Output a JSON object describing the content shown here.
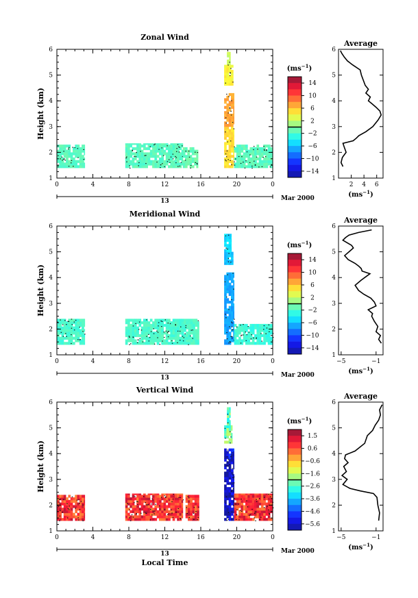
{
  "chart_data": [
    {
      "type": "heatmap",
      "title": "Zonal Wind",
      "ylabel": "Height (km)",
      "xlabel": "",
      "xlim": [
        0,
        24
      ],
      "ylim": [
        1,
        6
      ],
      "x_ticks": [
        "0",
        "4",
        "8",
        "12",
        "16",
        "20",
        "0"
      ],
      "y_ticks": [
        "1",
        "2",
        "3",
        "4",
        "5",
        "6"
      ],
      "date_day": "13",
      "date_label": "Mar 2000",
      "colorbar": {
        "unit": "(ms",
        "unit_sup": "−1",
        "unit_close": ")",
        "ticks": [
          "14",
          "10",
          "6",
          "2",
          "−2",
          "−6",
          "−10",
          "−14"
        ],
        "range": [
          -16,
          16
        ]
      },
      "data_blocks": [
        {
          "t0": 0.0,
          "t1": 3.1,
          "h0": 1.4,
          "h1": 2.3,
          "value": -1.5
        },
        {
          "t0": 7.6,
          "t1": 14.0,
          "h0": 1.4,
          "h1": 2.35,
          "value": -1.5
        },
        {
          "t0": 14.0,
          "t1": 15.7,
          "h0": 1.4,
          "h1": 2.2,
          "value": -1.0
        },
        {
          "t0": 18.6,
          "t1": 19.7,
          "h0": 1.4,
          "h1": 3.0,
          "value": 5.0
        },
        {
          "t0": 18.6,
          "t1": 19.7,
          "h0": 3.0,
          "h1": 4.3,
          "value": 7.0
        },
        {
          "t0": 18.6,
          "t1": 19.6,
          "h0": 4.6,
          "h1": 5.4,
          "value": 4.0
        },
        {
          "t0": 18.9,
          "t1": 19.3,
          "h0": 5.4,
          "h1": 5.9,
          "value": 2.5
        },
        {
          "t0": 19.7,
          "t1": 24.0,
          "h0": 1.4,
          "h1": 2.3,
          "value": -1.5
        }
      ],
      "average_profile": {
        "title": "Average",
        "xlabel": "(ms",
        "xlabel_sup": "−1",
        "xlabel_close": ")",
        "xlim": [
          0,
          7
        ],
        "x_ticks": [
          "2",
          "4",
          "6"
        ],
        "x": [
          0.7,
          0.4,
          0.6,
          1.2,
          0.9,
          0.7,
          1.5,
          2.3,
          2.8,
          3.2,
          4.3,
          5.4,
          6.2,
          6.7,
          6.5,
          5.9,
          5.2,
          4.7,
          5.0,
          4.3,
          4.7,
          4.2,
          3.9,
          3.6,
          3.4,
          2.2,
          1.4,
          0.9,
          0.5,
          0.3
        ],
        "y": [
          1.45,
          1.6,
          1.8,
          2.0,
          2.2,
          2.35,
          2.4,
          2.45,
          2.55,
          2.65,
          2.8,
          3.0,
          3.25,
          3.45,
          3.6,
          3.75,
          3.9,
          4.0,
          4.15,
          4.3,
          4.45,
          4.6,
          4.8,
          5.0,
          5.2,
          5.4,
          5.55,
          5.7,
          5.85,
          5.95
        ]
      }
    },
    {
      "type": "heatmap",
      "title": "Meridional Wind",
      "ylabel": "Height (km)",
      "xlabel": "",
      "xlim": [
        0,
        24
      ],
      "ylim": [
        1,
        6
      ],
      "x_ticks": [
        "0",
        "4",
        "8",
        "12",
        "16",
        "20",
        "0"
      ],
      "y_ticks": [
        "1",
        "2",
        "3",
        "4",
        "5",
        "6"
      ],
      "date_day": "13",
      "date_label": "Mar 2000",
      "colorbar": {
        "unit": "(ms",
        "unit_sup": "−1",
        "unit_close": ")",
        "ticks": [
          "14",
          "10",
          "6",
          "2",
          "−2",
          "−6",
          "−10",
          "−14"
        ],
        "range": [
          -16,
          16
        ]
      },
      "data_blocks": [
        {
          "t0": 0.0,
          "t1": 3.1,
          "h0": 1.4,
          "h1": 2.4,
          "value": -2.0
        },
        {
          "t0": 7.6,
          "t1": 15.8,
          "h0": 1.4,
          "h1": 2.4,
          "value": -2.0
        },
        {
          "t0": 18.6,
          "t1": 19.7,
          "h0": 1.4,
          "h1": 4.2,
          "value": -7.0
        },
        {
          "t0": 18.6,
          "t1": 19.6,
          "h0": 4.5,
          "h1": 5.0,
          "value": -6.0
        },
        {
          "t0": 18.6,
          "t1": 19.4,
          "h0": 5.0,
          "h1": 5.7,
          "value": -5.0
        },
        {
          "t0": 19.7,
          "t1": 24.0,
          "h0": 1.4,
          "h1": 2.2,
          "value": -2.5
        }
      ],
      "average_profile": {
        "title": "Average",
        "xlabel": "(ms",
        "xlabel_sup": "−1",
        "xlabel_close": ")",
        "xlim": [
          -5.3,
          -0.2
        ],
        "x_ticks": [
          "−5",
          "−1"
        ],
        "x": [
          -0.4,
          -0.7,
          -0.5,
          -1.0,
          -0.8,
          -1.2,
          -1.5,
          -1.4,
          -1.9,
          -1.0,
          -1.2,
          -1.6,
          -2.4,
          -3.0,
          -3.4,
          -2.7,
          -2.1,
          -1.7,
          -2.6,
          -2.7,
          -3.0,
          -3.4,
          -4.2,
          -4.6,
          -4.1,
          -3.6,
          -3.8,
          -4.3,
          -4.8,
          -4.5,
          -4.1,
          -3.0,
          -1.5
        ],
        "y": [
          1.45,
          1.6,
          1.75,
          1.9,
          2.1,
          2.3,
          2.5,
          2.6,
          2.75,
          2.9,
          3.05,
          3.2,
          3.35,
          3.5,
          3.7,
          3.9,
          4.05,
          4.15,
          4.25,
          4.35,
          4.45,
          4.55,
          4.7,
          4.85,
          5.0,
          5.15,
          5.25,
          5.35,
          5.45,
          5.55,
          5.65,
          5.75,
          5.85
        ]
      }
    },
    {
      "type": "heatmap",
      "title": "Vertical Wind",
      "ylabel": "Height (km)",
      "xlabel": "Local Time",
      "xlim": [
        0,
        24
      ],
      "ylim": [
        1,
        6
      ],
      "x_ticks": [
        "0",
        "4",
        "8",
        "12",
        "16",
        "20",
        "0"
      ],
      "y_ticks": [
        "1",
        "2",
        "3",
        "4",
        "5",
        "6"
      ],
      "date_day": "13",
      "date_label": "Mar 2000",
      "colorbar": {
        "unit": "(ms",
        "unit_sup": "−1",
        "unit_close": ")",
        "ticks": [
          "1.5",
          "0.6",
          "−0.6",
          "−1.6",
          "−2.6",
          "−3.6",
          "−4.6",
          "−5.6"
        ],
        "range": [
          -6.1,
          2.0
        ]
      },
      "data_blocks": [
        {
          "t0": 0.0,
          "t1": 3.1,
          "h0": 1.4,
          "h1": 2.4,
          "value": 0.8
        },
        {
          "t0": 7.6,
          "t1": 14.0,
          "h0": 1.4,
          "h1": 2.45,
          "value": 0.8
        },
        {
          "t0": 14.3,
          "t1": 15.8,
          "h0": 1.4,
          "h1": 2.4,
          "value": 0.8
        },
        {
          "t0": 18.6,
          "t1": 19.7,
          "h0": 1.4,
          "h1": 3.8,
          "value": -5.8
        },
        {
          "t0": 18.6,
          "t1": 19.7,
          "h0": 3.8,
          "h1": 4.2,
          "value": -5.4
        },
        {
          "t0": 18.6,
          "t1": 19.5,
          "h0": 4.4,
          "h1": 5.1,
          "value": -2.2
        },
        {
          "t0": 18.9,
          "t1": 19.3,
          "h0": 5.1,
          "h1": 5.8,
          "value": -2.5
        },
        {
          "t0": 19.7,
          "t1": 24.0,
          "h0": 1.4,
          "h1": 2.45,
          "value": 0.8
        }
      ],
      "average_profile": {
        "title": "Average",
        "xlabel": "(ms",
        "xlabel_sup": "−1",
        "xlabel_close": ")",
        "xlim": [
          -5.3,
          -0.2
        ],
        "x_ticks": [
          "−5",
          "−1"
        ],
        "x": [
          -0.7,
          -0.6,
          -0.8,
          -0.9,
          -1.3,
          -2.8,
          -4.0,
          -4.8,
          -4.3,
          -4.9,
          -4.4,
          -4.7,
          -4.2,
          -4.6,
          -4.5,
          -3.4,
          -2.3,
          -2.0,
          -1.4,
          -1.1,
          -0.7,
          -0.5,
          -0.6,
          -0.3
        ],
        "y": [
          1.4,
          1.7,
          2.0,
          2.3,
          2.45,
          2.55,
          2.65,
          2.8,
          3.0,
          3.15,
          3.3,
          3.5,
          3.65,
          3.8,
          3.95,
          4.1,
          4.4,
          4.7,
          4.9,
          5.1,
          5.3,
          5.5,
          5.7,
          5.9
        ]
      }
    }
  ]
}
